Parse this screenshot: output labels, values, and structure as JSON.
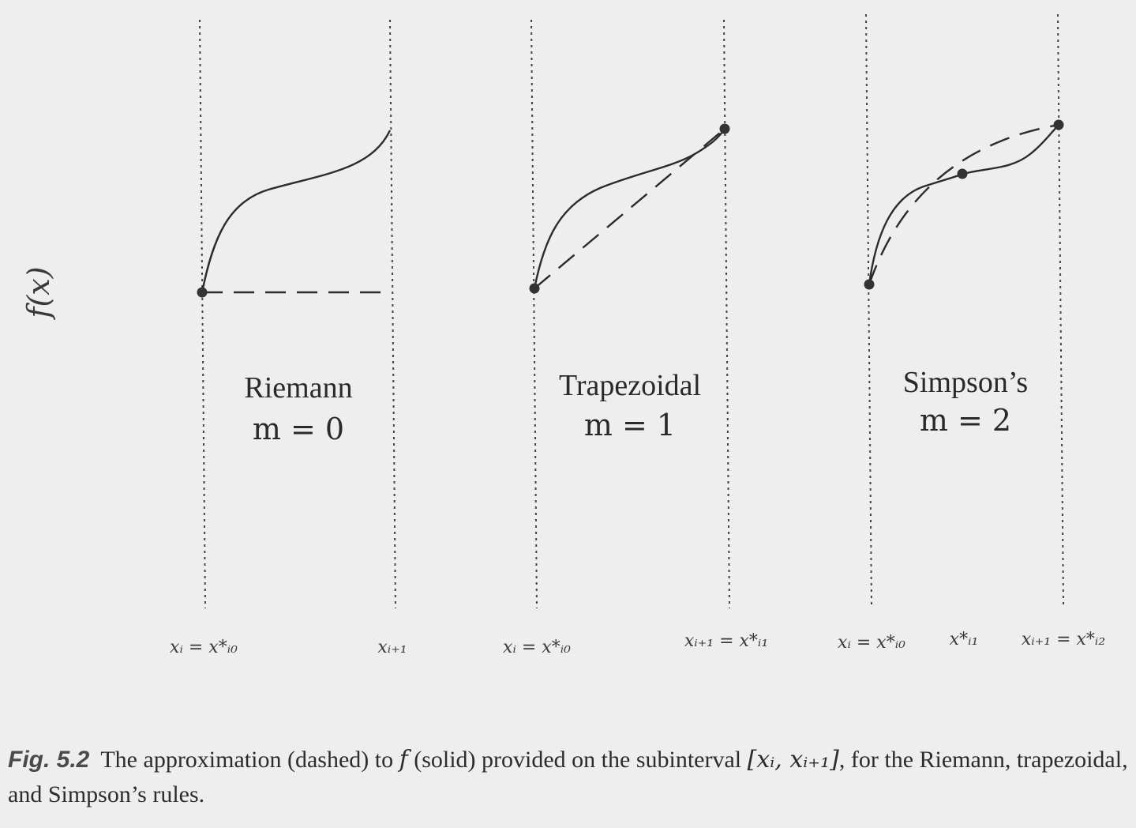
{
  "ylabel": "f(x)",
  "panels": [
    {
      "title": "Riemann",
      "m_label": "m = 0",
      "x_labels": [
        "xᵢ = x*ᵢ₀",
        "xᵢ₊₁"
      ]
    },
    {
      "title": "Trapezoidal",
      "m_label": "m = 1",
      "x_labels": [
        "xᵢ = x*ᵢ₀",
        "xᵢ₊₁ = x*ᵢ₁"
      ]
    },
    {
      "title": "Simpson’s",
      "m_label": "m = 2",
      "x_labels": [
        "xᵢ = x*ᵢ₀",
        "x*ᵢ₁",
        "xᵢ₊₁ = x*ᵢ₂"
      ]
    }
  ],
  "caption": {
    "fig_label": "Fig. 5.2",
    "text_1": "The approximation (dashed) to ",
    "f_symbol": "f",
    "text_2": " (solid) provided on the subinterval ",
    "interval": "[xᵢ, xᵢ₊₁]",
    "text_3": ", for the Riemann, trapezoidal, and Simpson’s rules."
  },
  "colors": {
    "ink": "#333333",
    "background": "#eeeeee"
  }
}
